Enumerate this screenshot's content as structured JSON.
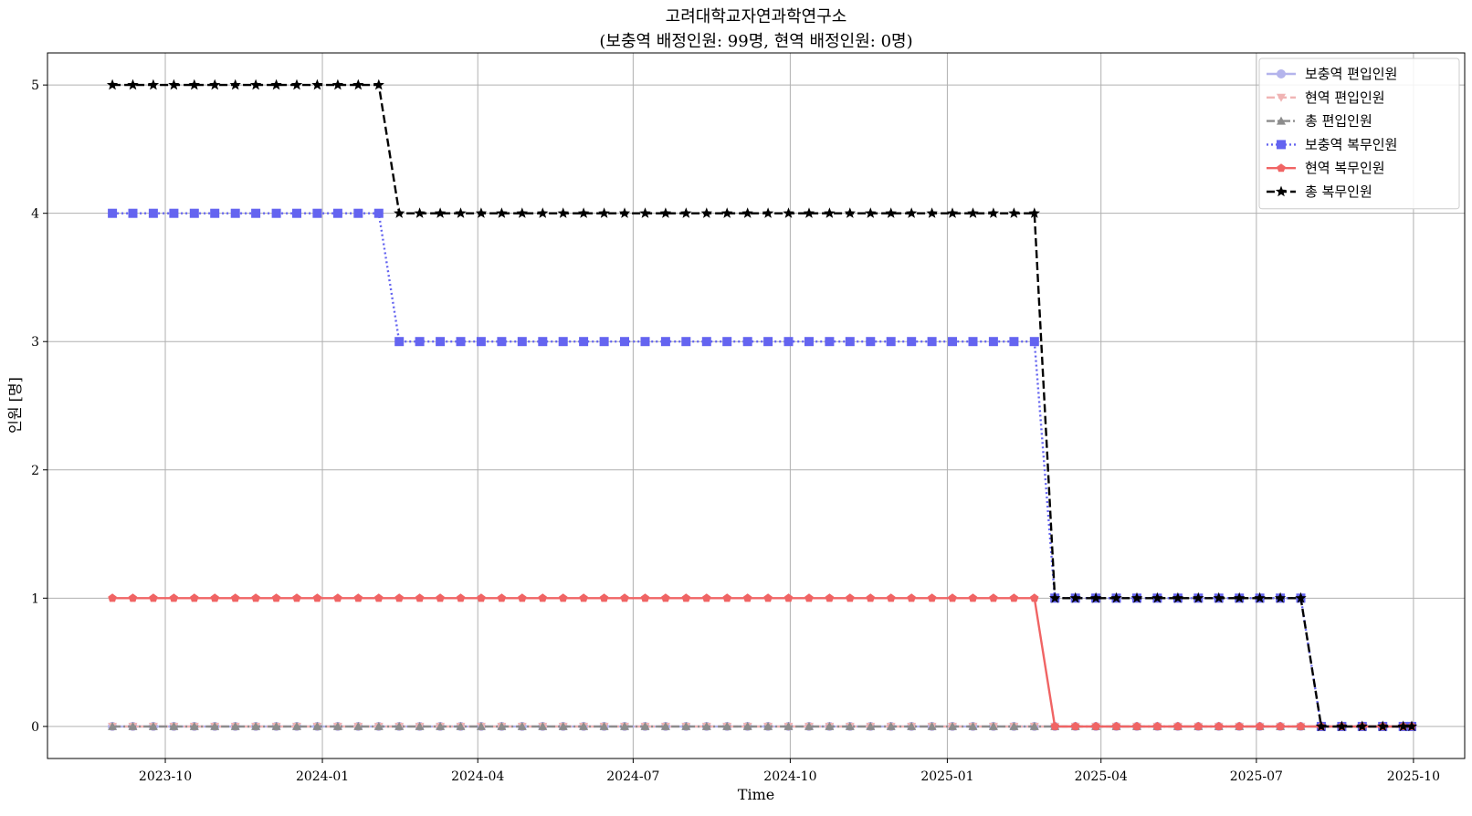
{
  "chart_data": {
    "type": "line",
    "title": "고려대학교자연과학연구소",
    "subtitle": "(보충역 배정인원: 99명, 현역 배정인원: 0명)",
    "xlabel": "Time",
    "ylabel": "인원 [명]",
    "x_tick_labels": [
      "2023-10",
      "2024-01",
      "2024-04",
      "2024-07",
      "2024-10",
      "2025-01",
      "2025-04",
      "2025-07",
      "2025-10"
    ],
    "y_tick_labels": [
      "0",
      "1",
      "2",
      "3",
      "4",
      "5"
    ],
    "ylim": [
      -0.25,
      5.25
    ],
    "xlim": [
      "2023-07-24",
      "2025-10-31"
    ],
    "grid": true,
    "legend_position": "top-right",
    "date_range": {
      "start": "2023-08-31",
      "end": "2025-09-30"
    },
    "series": [
      {
        "name": "보충역 편입인원",
        "color": "#b4b4ec",
        "line_style": "solid",
        "marker": "circle",
        "steps": [
          {
            "from": "2023-08-31",
            "value": 0
          }
        ]
      },
      {
        "name": "현역 편입인원",
        "color": "#f0b4b4",
        "line_style": "dashed",
        "marker": "triangle-down",
        "steps": [
          {
            "from": "2023-08-31",
            "value": 0
          }
        ]
      },
      {
        "name": "총 편입인원",
        "color": "#8c8c8c",
        "line_style": "dashdot",
        "marker": "triangle-up",
        "steps": [
          {
            "from": "2023-08-31",
            "value": 0
          }
        ]
      },
      {
        "name": "보충역 복무인원",
        "color": "#6464f0",
        "line_style": "dotted",
        "marker": "square",
        "steps": [
          {
            "from": "2023-08-31",
            "value": 4
          },
          {
            "from": "2024-02-10",
            "value": 3
          },
          {
            "from": "2025-03-01",
            "value": 1
          },
          {
            "from": "2025-08-01",
            "value": 0
          }
        ]
      },
      {
        "name": "현역 복무인원",
        "color": "#f06464",
        "line_style": "solid",
        "marker": "pentagon",
        "steps": [
          {
            "from": "2023-08-31",
            "value": 1
          },
          {
            "from": "2025-03-01",
            "value": 0
          }
        ]
      },
      {
        "name": "총 복무인원",
        "color": "#000000",
        "line_style": "dashed",
        "marker": "star",
        "steps": [
          {
            "from": "2023-08-31",
            "value": 5
          },
          {
            "from": "2024-02-10",
            "value": 4
          },
          {
            "from": "2025-03-01",
            "value": 1
          },
          {
            "from": "2025-08-01",
            "value": 0
          }
        ]
      }
    ]
  }
}
